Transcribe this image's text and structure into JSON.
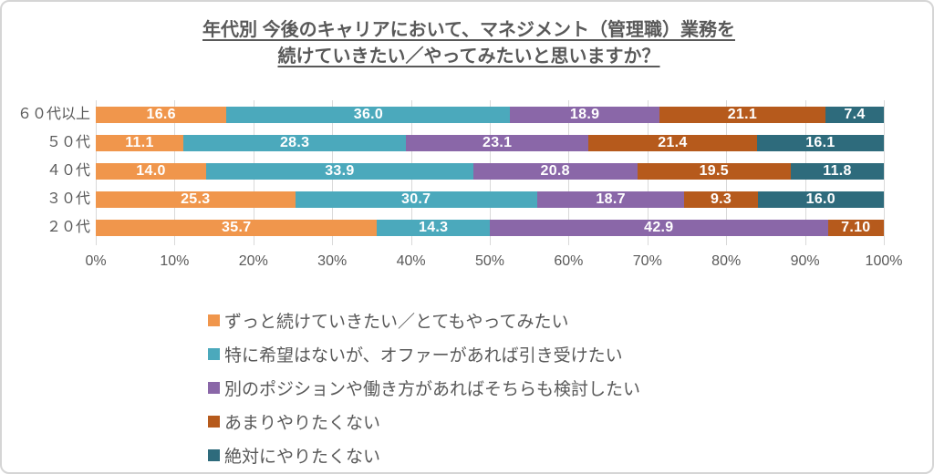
{
  "title": {
    "line1": "年代別 今後のキャリアにおいて、マネジメント（管理職）業務を",
    "line2": "続けていきたい／やってみたいと思いますか？"
  },
  "chart_data": {
    "type": "bar",
    "stacked": true,
    "orientation": "horizontal",
    "unit": "%",
    "xlim": [
      0,
      100
    ],
    "grid": true,
    "x_tick_labels": [
      "0%",
      "10%",
      "20%",
      "30%",
      "40%",
      "50%",
      "60%",
      "70%",
      "80%",
      "90%",
      "100%"
    ],
    "categories": [
      "６０代以上",
      "５０代",
      "４０代",
      "３０代",
      "２０代"
    ],
    "series": [
      {
        "name": "ずっと続けていきたい／とてもやってみたい",
        "color": "#F0964C",
        "values": [
          16.6,
          11.1,
          14.0,
          25.3,
          35.7
        ],
        "labels": [
          "16.6",
          "11.1",
          "14.0",
          "25.3",
          "35.7"
        ]
      },
      {
        "name": "特に希望はないが、オファーがあれば引き受けたい",
        "color": "#4BA9BC",
        "values": [
          36.0,
          28.3,
          33.9,
          30.7,
          14.3
        ],
        "labels": [
          "36.0",
          "28.3",
          "33.9",
          "30.7",
          "14.3"
        ]
      },
      {
        "name": "別のポジションや働き方があればそちらも検討したい",
        "color": "#8A67A8",
        "values": [
          18.9,
          23.1,
          20.8,
          18.7,
          42.9
        ],
        "labels": [
          "18.9",
          "23.1",
          "20.8",
          "18.7",
          "42.9"
        ]
      },
      {
        "name": "あまりやりたくない",
        "color": "#B65A1C",
        "values": [
          21.1,
          21.4,
          19.5,
          9.3,
          7.1
        ],
        "labels": [
          "21.1",
          "21.4",
          "19.5",
          "9.3",
          "7.10"
        ]
      },
      {
        "name": "絶対にやりたくない",
        "color": "#2E6B7C",
        "values": [
          7.4,
          16.1,
          11.8,
          16.0,
          0
        ],
        "labels": [
          "7.4",
          "16.1",
          "11.8",
          "16.0",
          ""
        ]
      }
    ],
    "legend_position": "bottom-left-stacked"
  },
  "colors": {
    "text_gray": "#595959",
    "gridline": "#d9d9d9",
    "frame_border": "#d5d5d5",
    "label_white": "#ffffff"
  }
}
